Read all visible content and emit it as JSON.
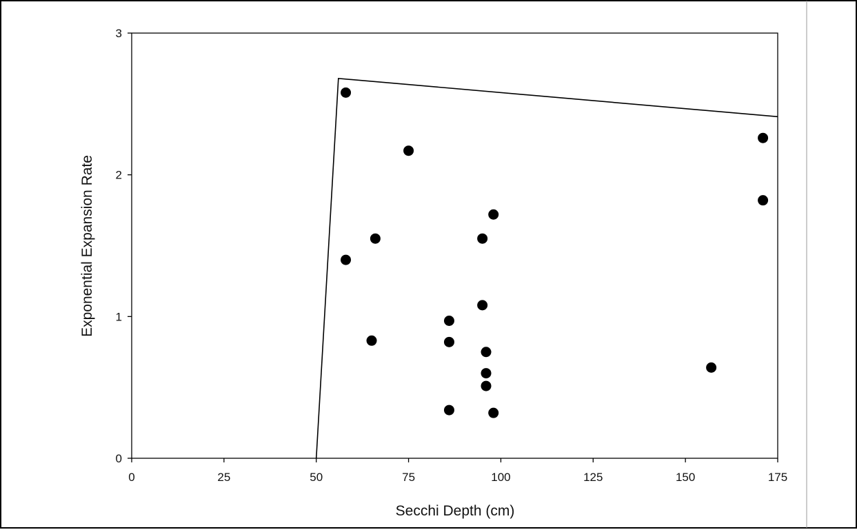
{
  "chart_data": {
    "type": "scatter",
    "title": "",
    "xlabel": "Secchi Depth (cm)",
    "ylabel": "Exponential Expansion Rate",
    "xlim": [
      0,
      175
    ],
    "ylim": [
      0,
      3
    ],
    "xticks": [
      0,
      25,
      50,
      75,
      100,
      125,
      150,
      175
    ],
    "yticks": [
      0,
      1,
      2,
      3
    ],
    "grid": false,
    "legend": "none",
    "series": [
      {
        "x": [
          58,
          58,
          66,
          65,
          75,
          86,
          86,
          86,
          95,
          95,
          96,
          96,
          96,
          98,
          98,
          157,
          171,
          171
        ],
        "y": [
          2.58,
          1.4,
          1.55,
          0.83,
          2.17,
          0.97,
          0.82,
          0.34,
          1.55,
          1.08,
          0.75,
          0.6,
          0.51,
          1.72,
          0.32,
          0.64,
          2.26,
          1.82
        ]
      }
    ],
    "envelope": {
      "x": [
        50,
        56,
        175
      ],
      "y": [
        0,
        2.68,
        2.41
      ]
    },
    "colors": {
      "points": "#000000",
      "line": "#000000",
      "frame": "#000000",
      "background": "#ffffff"
    }
  }
}
